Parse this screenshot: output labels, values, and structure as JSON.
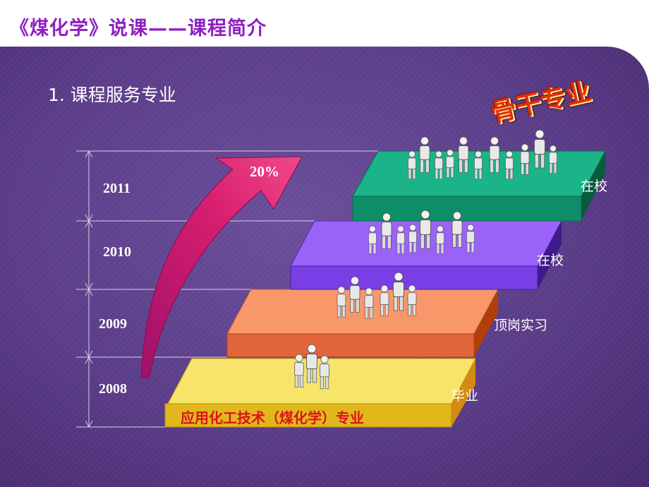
{
  "header": {
    "title": "《煤化学》说课——课程简介"
  },
  "section": {
    "heading": "1. 课程服务专业"
  },
  "timeline": {
    "years": [
      "2011",
      "2010",
      "2009",
      "2008"
    ]
  },
  "growth": {
    "label": "20%"
  },
  "steps": [
    {
      "status": "在校",
      "color": "#17a27c"
    },
    {
      "status": "在校",
      "color": "#8b4cf0"
    },
    {
      "status": "顶岗实习",
      "color": "#f28a5a"
    },
    {
      "status": "毕业",
      "color": "#f2e05e"
    }
  ],
  "major": {
    "name": "应用化工技术（煤化学）专业"
  },
  "badge": {
    "text": "骨干专业"
  }
}
